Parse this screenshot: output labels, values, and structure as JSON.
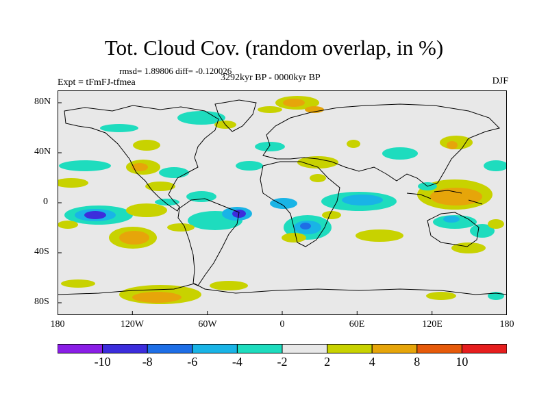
{
  "title": "Tot. Cloud Cov. (random overlap, in %)",
  "stats": "rmsd= 1.89806 diff= -0.120026",
  "experiment": "Expt = tFmFJ-tfmea",
  "period": "3292kyr BP - 0000kyr BP",
  "season": "DJF",
  "map": {
    "x_ticks": [
      "180",
      "120W",
      "60W",
      "0",
      "60E",
      "120E",
      "180"
    ],
    "y_ticks": [
      "80N",
      "40N",
      "0",
      "40S",
      "80S"
    ],
    "background_color": "#e8e8e8",
    "frame_color": "#000000"
  },
  "colorbar": {
    "labels": [
      "-10",
      "-8",
      "-6",
      "-4",
      "-2",
      "2",
      "4",
      "8",
      "10"
    ],
    "colors": [
      "#8a1ee6",
      "#3c2ddc",
      "#1e6ee6",
      "#19b4e6",
      "#1edcbe",
      "#e8e8e8",
      "#c8d200",
      "#e6a50a",
      "#e65a0a",
      "#e61e1e"
    ]
  }
}
